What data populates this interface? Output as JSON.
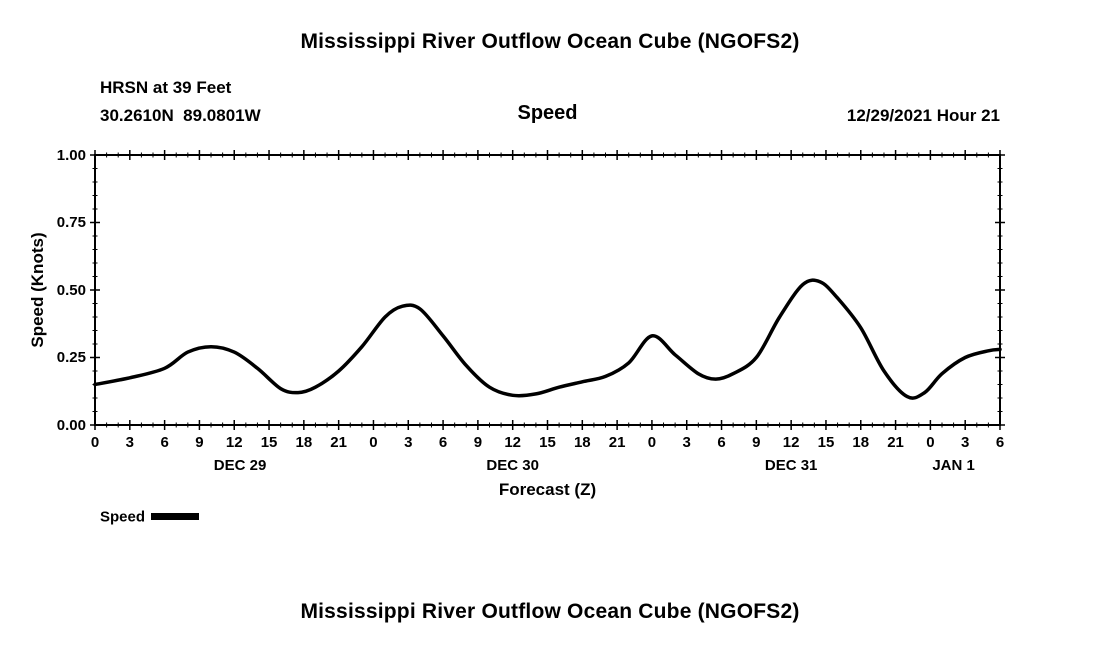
{
  "page": {
    "title_top": "Mississippi River Outflow Ocean Cube (NGOFS2)",
    "title_bottom": "Mississippi River Outflow Ocean Cube (NGOFS2)"
  },
  "header": {
    "station": "HRSN at 39 Feet",
    "coordinates": "30.2610N  89.0801W",
    "plot_label": "Speed",
    "timestamp": "12/29/2021 Hour 21"
  },
  "chart_data": {
    "type": "line",
    "title": "Speed",
    "xlabel": "Forecast (Z)",
    "ylabel": "Speed (Knots)",
    "xlim": [
      0,
      78
    ],
    "ylim": [
      0.0,
      1.0
    ],
    "grid": false,
    "line_color": "#000000",
    "ytick_values": [
      0.0,
      0.25,
      0.5,
      0.75,
      1.0
    ],
    "ytick_labels": [
      "0.00",
      "0.25",
      "0.50",
      "0.75",
      "1.00"
    ],
    "y_minor_step": 0.05,
    "x_minor_step": 1,
    "x_tick_hours": [
      0,
      3,
      6,
      9,
      12,
      15,
      18,
      21,
      24,
      27,
      30,
      33,
      36,
      39,
      42,
      45,
      48,
      51,
      54,
      57,
      60,
      63,
      66,
      69,
      72,
      75,
      78
    ],
    "x_tick_labels": [
      "0",
      "3",
      "6",
      "9",
      "12",
      "15",
      "18",
      "21",
      "0",
      "3",
      "6",
      "9",
      "12",
      "15",
      "18",
      "21",
      "0",
      "3",
      "6",
      "9",
      "12",
      "15",
      "18",
      "21",
      "0",
      "3",
      "6"
    ],
    "date_labels": [
      {
        "label": "DEC 29",
        "hour": 12.5
      },
      {
        "label": "DEC 30",
        "hour": 36
      },
      {
        "label": "DEC 31",
        "hour": 60
      },
      {
        "label": "JAN 1",
        "hour": 74
      }
    ],
    "legend": {
      "label": "Speed",
      "position": "bottom-left"
    },
    "series": [
      {
        "name": "Speed",
        "color": "#000000",
        "x": [
          0,
          3,
          6,
          8,
          10,
          12,
          14,
          16,
          17.5,
          19,
          21,
          23,
          25,
          26.5,
          28,
          30,
          32,
          34,
          36,
          38,
          40,
          42,
          44,
          46,
          48,
          50,
          52,
          53.5,
          55,
          57,
          59,
          61,
          62.5,
          64,
          66,
          68,
          70,
          71.5,
          73,
          75,
          77,
          78
        ],
        "values": [
          0.15,
          0.175,
          0.21,
          0.27,
          0.29,
          0.27,
          0.21,
          0.135,
          0.12,
          0.14,
          0.2,
          0.29,
          0.4,
          0.44,
          0.43,
          0.33,
          0.22,
          0.14,
          0.11,
          0.115,
          0.14,
          0.16,
          0.18,
          0.23,
          0.33,
          0.26,
          0.19,
          0.17,
          0.19,
          0.25,
          0.4,
          0.52,
          0.53,
          0.47,
          0.36,
          0.2,
          0.105,
          0.12,
          0.19,
          0.25,
          0.275,
          0.28
        ]
      }
    ]
  }
}
